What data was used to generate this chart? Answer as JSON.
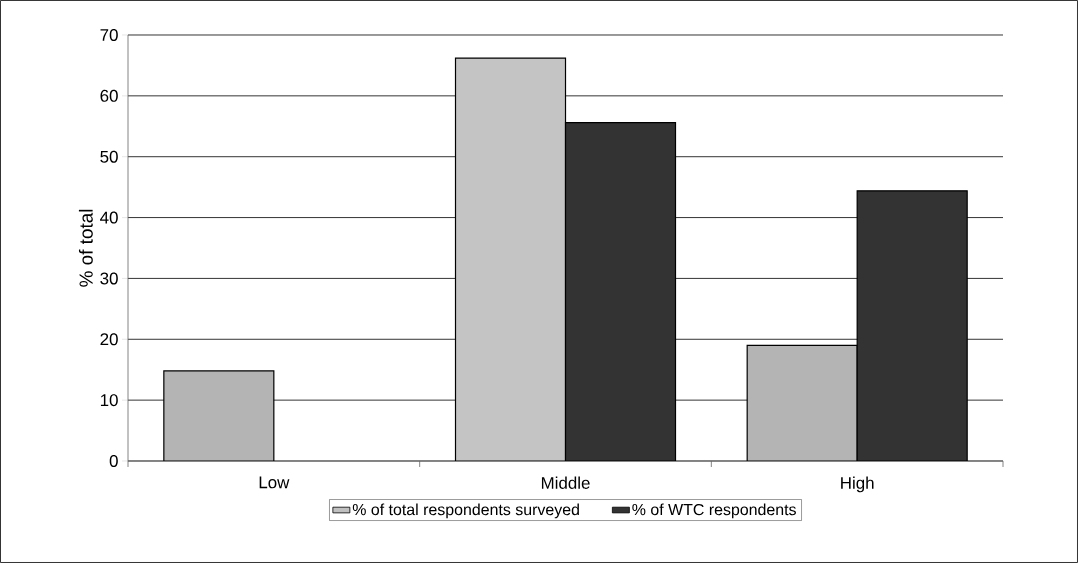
{
  "chart_data": {
    "type": "bar",
    "ylabel": "% of total",
    "categories": [
      "Low",
      "Middle",
      "High"
    ],
    "series": [
      {
        "name": "% of total respondents surveyed",
        "color": "#c0c0c0",
        "colors": [
          "#b4b4b4",
          "#c4c4c4",
          "#b4b4b4"
        ],
        "values": [
          14.8,
          66.2,
          19.0
        ]
      },
      {
        "name": "% of WTC respondents",
        "color": "#333333",
        "values": [
          null,
          55.6,
          44.4
        ]
      }
    ],
    "ylim": [
      0,
      70
    ],
    "yticks": [
      0,
      10,
      20,
      30,
      40,
      50,
      60,
      70
    ],
    "grid": "y",
    "legend": "bottom"
  }
}
